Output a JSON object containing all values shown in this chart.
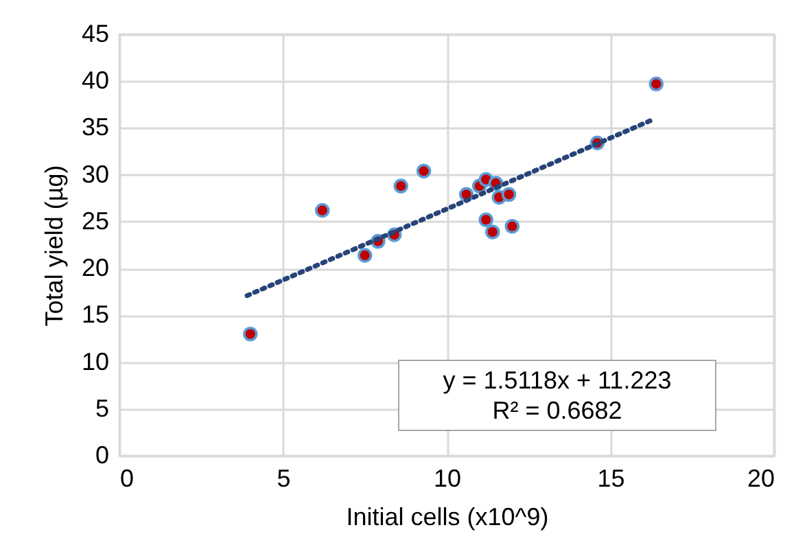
{
  "chart_data": {
    "type": "scatter",
    "xlabel": "Initial cells (x10^9)",
    "ylabel": "Total yield (µg)",
    "xlim": [
      0,
      20
    ],
    "xticks": [
      0,
      5,
      10,
      15,
      20
    ],
    "ylim": [
      0,
      45
    ],
    "yticks": [
      0,
      5,
      10,
      15,
      20,
      25,
      30,
      35,
      40,
      45
    ],
    "grid": true,
    "marker": "circle",
    "annotations": [
      "y = 1.5118x + 11.223",
      "R² = 0.6682"
    ],
    "series": [
      {
        "color": "#c00000",
        "x": [
          4.0,
          6.2,
          7.5,
          7.9,
          8.4,
          8.6,
          9.3,
          10.6,
          11.0,
          11.2,
          11.5,
          11.6,
          11.9,
          11.2,
          11.4,
          12.0,
          14.6,
          16.4
        ],
        "values": [
          13.0,
          26.2,
          21.4,
          22.9,
          23.6,
          28.8,
          30.4,
          27.9,
          28.8,
          29.5,
          29.1,
          27.6,
          27.9,
          25.2,
          23.9,
          24.5,
          33.4,
          39.7
        ]
      },
      {
        "type": "line",
        "color": "#264478",
        "line_style": "dotted",
        "marker": "none",
        "x": [
          3.9,
          16.3
        ],
        "values": [
          17.1,
          35.9
        ]
      }
    ]
  }
}
